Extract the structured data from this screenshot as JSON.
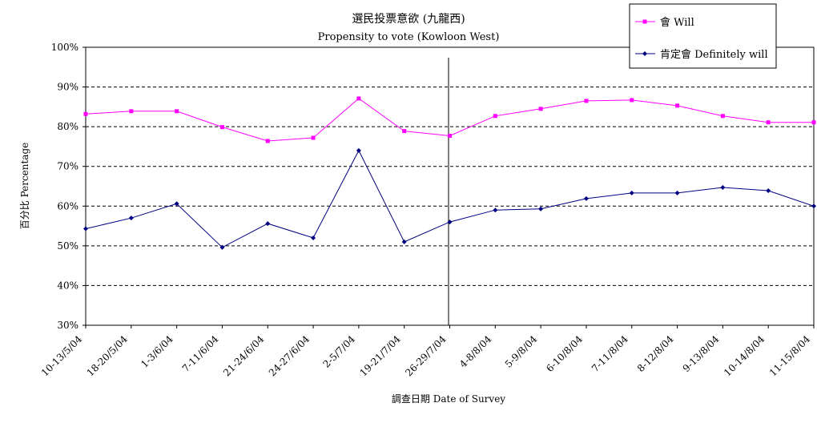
{
  "chart_data": {
    "type": "line",
    "title": "選民投票意欲 (九龍西)",
    "subtitle": "Propensity to vote (Kowloon West)",
    "xlabel": "調查日期 Date of Survey",
    "ylabel": "百分比 Percentage",
    "ylim": [
      30,
      100
    ],
    "yticks": [
      "30%",
      "40%",
      "50%",
      "60%",
      "70%",
      "80%",
      "90%",
      "100%"
    ],
    "grid": "horizontal dashed",
    "legend_position": "top-right",
    "categories": [
      "10-13/5/04",
      "18-20/5/04",
      "1-3/6/04",
      "7-11/6/04",
      "21-24/6/04",
      "24-27/6/04",
      "2-5/7/04",
      "19-21/7/04",
      "26-29/7/04",
      "4-8/8/04",
      "5-9/8/04",
      "6-10/8/04",
      "7-11/8/04",
      "8-12/8/04",
      "9-13/8/04",
      "10-14/8/04",
      "11-15/8/04"
    ],
    "series": [
      {
        "name": "會 Will",
        "color": "#ff00ff",
        "marker": "square",
        "values": [
          83.2,
          83.9,
          83.9,
          79.9,
          76.4,
          77.2,
          87.1,
          78.9,
          77.7,
          82.7,
          84.5,
          86.5,
          86.7,
          85.3,
          82.7,
          81.1,
          81.1
        ]
      },
      {
        "name": "肯定會 Definitely will",
        "color": "#000080",
        "marker": "diamond",
        "values": [
          54.3,
          57.0,
          60.6,
          49.6,
          55.6,
          52.0,
          74.0,
          51.0,
          56.0,
          59.0,
          59.3,
          61.9,
          63.3,
          63.3,
          64.7,
          63.9,
          60.0
        ]
      }
    ]
  }
}
